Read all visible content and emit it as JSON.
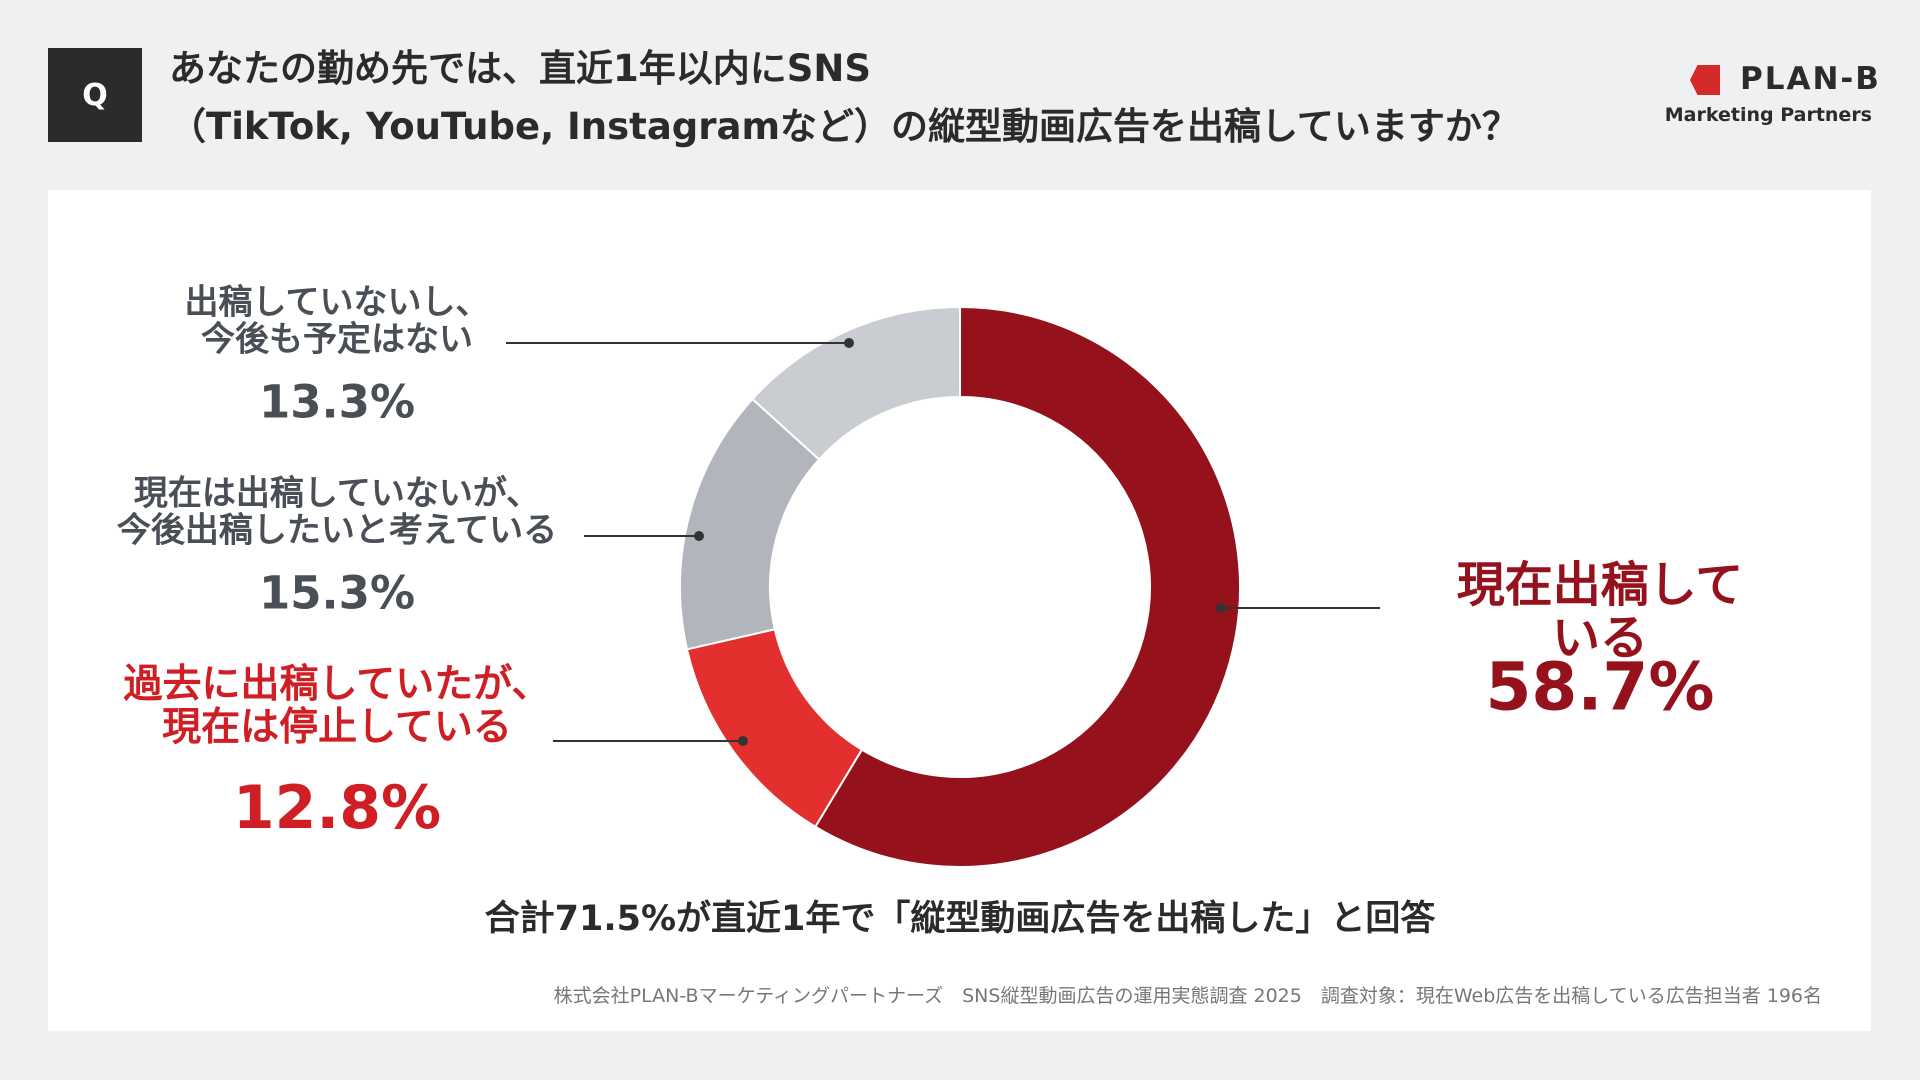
{
  "header": {
    "badge": "Q",
    "title": "あなたの勤め先では、直近1年以内にSNS\n（TikTok, YouTube, Instagramなど）の縦型動画広告を出稿していますか？",
    "logo": "PLAN-B",
    "logo_sub": "Marketing Partners"
  },
  "chart_data": {
    "type": "donut",
    "categories": [
      "現在出稿している",
      "過去に出稿していたが、\n現在は停止している",
      "現在は出稿していないが、\n今後出稿したいと考えている",
      "出稿していないし、\n今後も予定はない"
    ],
    "values": [
      58.7,
      12.8,
      15.3,
      13.3
    ],
    "value_labels": [
      "58.7%",
      "12.8%",
      "15.3%",
      "13.3%"
    ],
    "colors": [
      "#95111c",
      "#e3302e",
      "#b2b6bc",
      "#c9ccd0"
    ],
    "label_colors": [
      "#95111c",
      "#cf1f24",
      "#4a4f57",
      "#4a4f57"
    ]
  },
  "summary": "合計71.5%が直近1年で「縦型動画広告を出稿した」と回答",
  "source": "株式会社PLAN-Bマーケティングパートナーズ　SNS縦型動画広告の運用実態調査 2025　調査対象：現在Web広告を出稿している広告担当者 196名"
}
